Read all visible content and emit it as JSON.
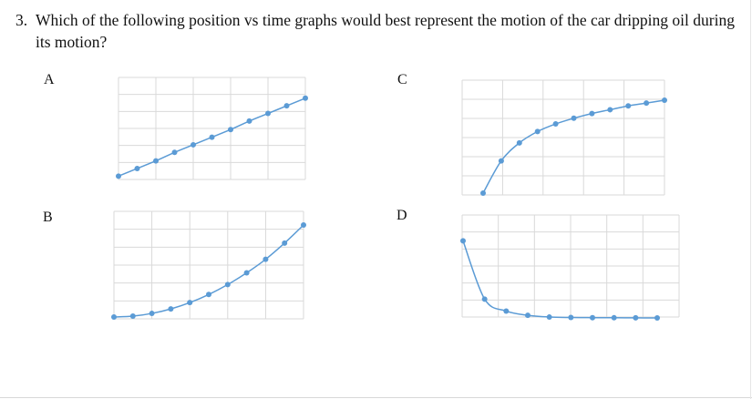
{
  "question": {
    "number": "3.",
    "text": "Which of the following position vs time graphs would best represent the motion of the car dripping oil during its motion?"
  },
  "options": [
    {
      "label": "A"
    },
    {
      "label": "B"
    },
    {
      "label": "C"
    },
    {
      "label": "D"
    }
  ],
  "chart_data": [
    {
      "type": "line",
      "option": "A",
      "x": [
        0,
        1,
        2,
        3,
        4,
        5,
        6,
        7,
        8,
        9,
        10
      ],
      "y": [
        0.5,
        1.4,
        2.3,
        3.3,
        4.2,
        5.1,
        6.0,
        7.0,
        7.9,
        8.8,
        9.7
      ],
      "ylim": [
        0,
        10
      ],
      "grid": true,
      "color": "#5b9bd5"
    },
    {
      "type": "line",
      "option": "B",
      "x": [
        0,
        1,
        2,
        3,
        4,
        5,
        6,
        7,
        8,
        9,
        10
      ],
      "y": [
        0.2,
        0.3,
        0.6,
        1.1,
        1.8,
        2.7,
        3.8,
        5.1,
        6.6,
        8.4,
        10.4
      ],
      "ylim": [
        0,
        10
      ],
      "grid": true,
      "color": "#5b9bd5"
    },
    {
      "type": "line",
      "option": "C",
      "x": [
        0,
        1,
        2,
        3,
        4,
        5,
        6,
        7,
        8,
        9,
        10
      ],
      "y": [
        0.1,
        3.5,
        5.4,
        6.6,
        7.4,
        8.0,
        8.5,
        8.9,
        9.3,
        9.6,
        9.9
      ],
      "ylim": [
        0,
        10
      ],
      "grid": true,
      "color": "#5b9bd5"
    },
    {
      "type": "line",
      "option": "D",
      "x": [
        0,
        1,
        2,
        3,
        4,
        5,
        6,
        7,
        8,
        9
      ],
      "y": [
        9.0,
        2.2,
        0.8,
        0.3,
        0.1,
        0.05,
        0.03,
        0.02,
        0.01,
        0.0
      ],
      "ylim": [
        0,
        10
      ],
      "grid": true,
      "color": "#5b9bd5"
    }
  ]
}
